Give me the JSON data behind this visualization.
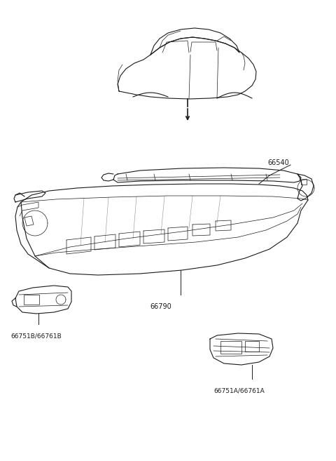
{
  "bg_color": "#ffffff",
  "line_color": "#1a1a1a",
  "fig_width": 4.8,
  "fig_height": 6.57,
  "dpi": 100,
  "label_66540": "66540",
  "label_66790": "66790",
  "label_left": "66751B/66761B",
  "label_right": "66751A/66761A",
  "label_fs": 7.0
}
